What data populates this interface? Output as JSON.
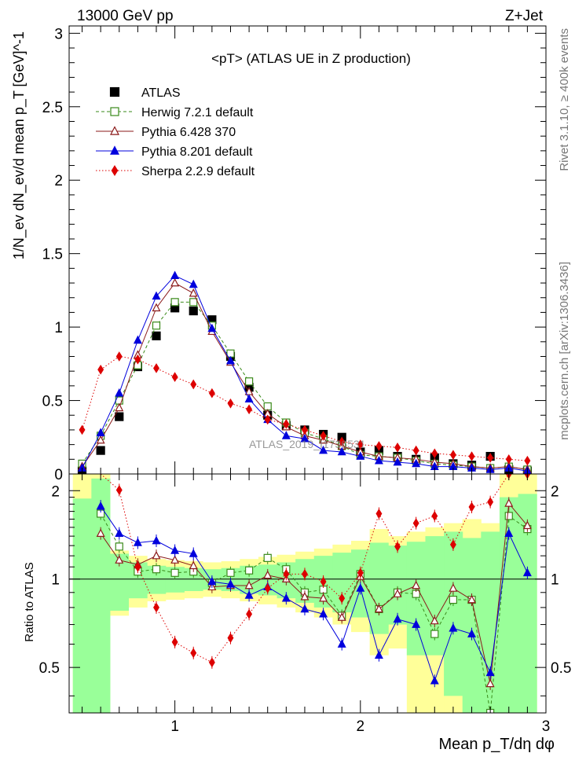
{
  "header": {
    "left": "13000 GeV pp",
    "right": "Z+Jet",
    "side_top": "Rivet 3.1.10, ≥ 400k events",
    "side_bottom": "mcplots.cern.ch [arXiv:1306.3436]",
    "watermark": "ATLAS_2019_I1736531"
  },
  "chart_data": [
    {
      "type": "line",
      "title": "<pT> (ATLAS UE in Z production)",
      "ylabel": "1/N_ev dN_ev/d mean p_T [GeV]^-1",
      "xlim": [
        0.43,
        3.0
      ],
      "ylim": [
        0,
        3.05
      ],
      "yticks": [
        "0",
        "0.5",
        "1",
        "1.5",
        "2",
        "2.5",
        "3"
      ],
      "x": [
        0.5,
        0.6,
        0.7,
        0.8,
        0.9,
        1.0,
        1.1,
        1.2,
        1.3,
        1.4,
        1.5,
        1.6,
        1.7,
        1.8,
        1.9,
        2.0,
        2.1,
        2.2,
        2.3,
        2.4,
        2.5,
        2.6,
        2.7,
        2.8,
        2.9
      ],
      "series": [
        {
          "name": "ATLAS",
          "color": "#000000",
          "marker": "square-filled",
          "line": "none",
          "values": [
            0.02,
            0.16,
            0.39,
            0.73,
            0.94,
            1.13,
            1.11,
            1.05,
            0.8,
            0.59,
            0.4,
            0.33,
            0.3,
            0.27,
            0.25,
            0.15,
            0.16,
            0.12,
            0.1,
            0.11,
            0.07,
            0.06,
            0.12,
            0.03,
            0.02
          ]
        },
        {
          "name": "Herwig 7.2.1 default",
          "color": "#3a8a1a",
          "marker": "square-open",
          "line": "dashed",
          "values": [
            0.07,
            0.26,
            0.5,
            0.74,
            1.01,
            1.17,
            1.17,
            1.01,
            0.82,
            0.63,
            0.46,
            0.35,
            0.28,
            0.24,
            0.19,
            0.13,
            0.12,
            0.11,
            0.09,
            0.07,
            0.06,
            0.05,
            0.04,
            0.05,
            0.03
          ]
        },
        {
          "name": "Pythia 6.428 370",
          "color": "#8b1a1a",
          "marker": "triangle-open",
          "line": "solid",
          "values": [
            0.05,
            0.23,
            0.45,
            0.81,
            1.13,
            1.3,
            1.23,
            0.97,
            0.76,
            0.56,
            0.41,
            0.32,
            0.26,
            0.23,
            0.19,
            0.15,
            0.12,
            0.11,
            0.1,
            0.08,
            0.07,
            0.05,
            0.04,
            0.05,
            0.03
          ]
        },
        {
          "name": "Pythia 8.201 default",
          "color": "#0000dd",
          "marker": "triangle-filled",
          "line": "solid",
          "values": [
            0.04,
            0.28,
            0.55,
            0.91,
            1.21,
            1.35,
            1.29,
            0.99,
            0.77,
            0.51,
            0.37,
            0.26,
            0.24,
            0.16,
            0.15,
            0.12,
            0.09,
            0.08,
            0.07,
            0.05,
            0.05,
            0.04,
            0.03,
            0.04,
            0.02
          ]
        },
        {
          "name": "Sherpa 2.2.9 default",
          "color": "#dd0000",
          "marker": "diamond-filled",
          "line": "dotted",
          "values": [
            0.3,
            0.71,
            0.8,
            0.78,
            0.72,
            0.66,
            0.61,
            0.55,
            0.48,
            0.44,
            0.37,
            0.34,
            0.3,
            0.26,
            0.22,
            0.2,
            0.19,
            0.18,
            0.16,
            0.14,
            0.13,
            0.12,
            0.11,
            0.1,
            0.09
          ]
        }
      ]
    },
    {
      "type": "line",
      "ylabel": "Ratio to ATLAS",
      "xlabel": "Mean p_T/dη dφ",
      "xlim": [
        0.43,
        3.0
      ],
      "ylim": [
        0.35,
        2.28
      ],
      "yticks": [
        "0.5",
        "1",
        "2"
      ],
      "xticks": [
        "1",
        "2",
        "3"
      ],
      "x": [
        0.6,
        0.7,
        0.8,
        0.9,
        1.0,
        1.1,
        1.2,
        1.3,
        1.4,
        1.5,
        1.6,
        1.7,
        1.8,
        1.9,
        2.0,
        2.1,
        2.2,
        2.3,
        2.4,
        2.5,
        2.6,
        2.7,
        2.8,
        2.9
      ],
      "bands": {
        "x_edges": [
          0.45,
          0.55,
          0.65,
          0.75,
          0.85,
          0.95,
          1.05,
          1.15,
          1.25,
          1.35,
          1.45,
          1.55,
          1.65,
          1.75,
          1.85,
          1.95,
          2.05,
          2.15,
          2.25,
          2.35,
          2.45,
          2.55,
          2.65,
          2.75,
          2.85,
          2.95
        ],
        "yellow_color": "#ffff99",
        "green_color": "#99ff99",
        "yellow_lo": [
          0.35,
          0.35,
          0.75,
          0.8,
          0.84,
          0.85,
          0.86,
          0.87,
          0.86,
          0.84,
          0.82,
          0.8,
          0.77,
          0.74,
          0.7,
          0.66,
          0.55,
          0.58,
          0.35,
          0.35,
          0.35,
          0.35,
          0.35,
          0.35,
          0.35
        ],
        "yellow_hi": [
          2.28,
          2.28,
          1.25,
          1.2,
          1.17,
          1.16,
          1.15,
          1.14,
          1.15,
          1.17,
          1.19,
          1.21,
          1.24,
          1.27,
          1.31,
          1.35,
          1.48,
          1.4,
          1.45,
          1.5,
          1.55,
          1.6,
          1.55,
          2.28,
          2.28
        ],
        "green_lo": [
          0.35,
          0.35,
          0.78,
          0.86,
          0.89,
          0.9,
          0.91,
          0.92,
          0.91,
          0.89,
          0.88,
          0.86,
          0.83,
          0.8,
          0.77,
          0.74,
          0.65,
          0.7,
          0.55,
          0.55,
          0.4,
          0.35,
          0.35,
          0.35,
          0.35
        ],
        "green_hi": [
          1.88,
          2.2,
          1.22,
          1.14,
          1.11,
          1.1,
          1.09,
          1.08,
          1.09,
          1.11,
          1.12,
          1.14,
          1.17,
          1.2,
          1.23,
          1.26,
          1.33,
          1.3,
          1.34,
          1.4,
          1.45,
          1.38,
          1.45,
          1.9,
          1.95
        ]
      },
      "series": [
        {
          "name": "Herwig 7.2.1 default",
          "color": "#3a8a1a",
          "marker": "square-open",
          "line": "dashed",
          "values": [
            1.67,
            1.29,
            1.06,
            1.08,
            1.05,
            1.06,
            0.97,
            1.05,
            1.07,
            1.18,
            1.08,
            0.9,
            0.92,
            0.75,
            1.04,
            0.79,
            0.9,
            0.89,
            0.65,
            0.85,
            0.85,
            0.35,
            1.64,
            1.48
          ]
        },
        {
          "name": "Pythia 6.428 370",
          "color": "#8b1a1a",
          "marker": "triangle-open",
          "line": "solid",
          "values": [
            1.43,
            1.16,
            1.12,
            1.2,
            1.16,
            1.11,
            0.94,
            0.95,
            0.95,
            1.03,
            1.0,
            0.87,
            0.86,
            0.74,
            1.02,
            0.79,
            0.89,
            0.95,
            0.72,
            0.93,
            0.85,
            0.44,
            1.81,
            1.52
          ]
        },
        {
          "name": "Pythia 8.201 default",
          "color": "#0000dd",
          "marker": "triangle-filled",
          "line": "solid",
          "values": [
            1.77,
            1.43,
            1.33,
            1.35,
            1.25,
            1.22,
            0.98,
            0.96,
            0.88,
            0.94,
            0.86,
            0.79,
            0.76,
            0.6,
            0.93,
            0.55,
            0.73,
            0.7,
            0.45,
            0.68,
            0.65,
            0.48,
            1.43,
            1.05
          ]
        },
        {
          "name": "Sherpa 2.2.9 default",
          "color": "#dd0000",
          "marker": "diamond-filled",
          "line": "dotted",
          "values": [
            null,
            2.01,
            1.1,
            0.8,
            0.61,
            0.56,
            0.52,
            0.63,
            0.76,
            0.93,
            1.04,
            1.04,
            0.98,
            0.86,
            1.05,
            1.67,
            1.29,
            1.55,
            1.64,
            1.31,
            1.76,
            1.83,
            2.28,
            2.28
          ]
        }
      ]
    }
  ]
}
